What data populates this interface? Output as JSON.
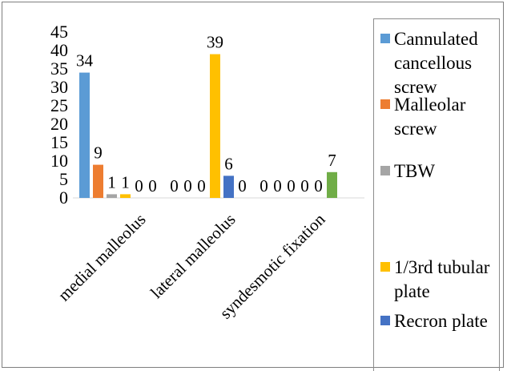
{
  "chart_data": {
    "type": "bar",
    "title": "",
    "xlabel": "",
    "ylabel": "",
    "categories": [
      "medial malleolus",
      "lateral malleolus",
      "syndesmotic fixation"
    ],
    "ylim": [
      0,
      45
    ],
    "yticks": [
      0,
      5,
      10,
      15,
      20,
      25,
      30,
      35,
      40,
      45
    ],
    "grid": false,
    "legend_position": "right",
    "series": [
      {
        "name": "Cannulated cancellous screw",
        "color": "#5b9bd5",
        "values": [
          34,
          0,
          0
        ]
      },
      {
        "name": "Malleolar screw",
        "color": "#ed7d31",
        "values": [
          9,
          0,
          0
        ]
      },
      {
        "name": "TBW",
        "color": "#a5a5a5",
        "values": [
          1,
          0,
          0
        ]
      },
      {
        "name": "1/3rd tubular plate",
        "color": "#ffc000",
        "values": [
          1,
          39,
          0
        ]
      },
      {
        "name": "Recron plate",
        "color": "#4472c4",
        "values": [
          0,
          6,
          0
        ]
      },
      {
        "name": "",
        "color": "#70ad47",
        "values": [
          0,
          0,
          7
        ]
      }
    ]
  }
}
